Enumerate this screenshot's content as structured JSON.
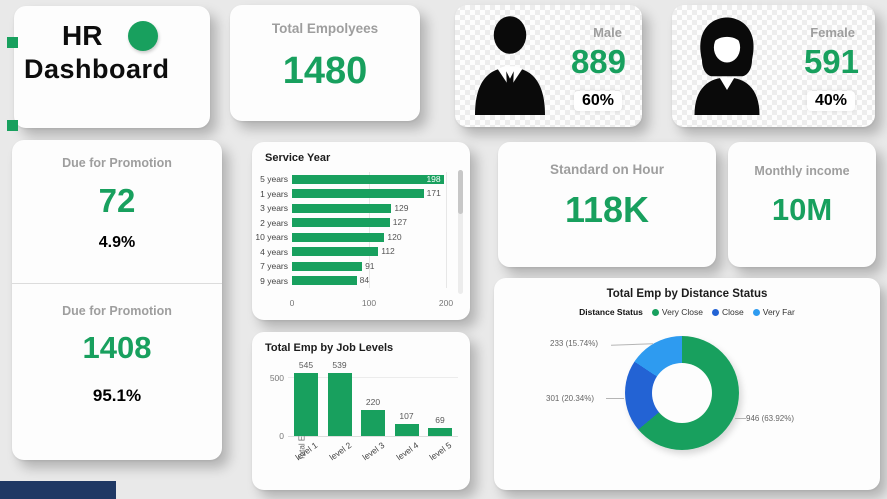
{
  "theme": {
    "green": "#18A05E",
    "page_bg": "#E9E9E9",
    "navy": "#1F3864"
  },
  "title_card": {
    "line1": "HR",
    "line2": "Dashboard"
  },
  "total_employees": {
    "label": "Total Empolyees",
    "value": "1480"
  },
  "male": {
    "label": "Male",
    "value": "889",
    "percent": "60%"
  },
  "female": {
    "label": "Female",
    "value": "591",
    "percent": "40%"
  },
  "promotion": {
    "top": {
      "label": "Due for Promotion",
      "value": "72",
      "percent": "4.9%"
    },
    "bottom": {
      "label": "Due for Promotion",
      "value": "1408",
      "percent": "95.1%"
    }
  },
  "standard_on_hour": {
    "label": "Standard on Hour",
    "value": "118K"
  },
  "monthly_income": {
    "label": "Monthly income",
    "value": "10M"
  },
  "chart_data": [
    {
      "type": "bar",
      "orientation": "horizontal",
      "title": "Service Year",
      "categories": [
        "5 years",
        "1 years",
        "3 years",
        "2 years",
        "10 years",
        "4 years",
        "7 years",
        "9 years"
      ],
      "values": [
        198,
        171,
        129,
        127,
        120,
        112,
        91,
        84
      ],
      "xlim": [
        0,
        200
      ],
      "xticks": [
        "0",
        "100",
        "200"
      ],
      "bar_color": "#18A05E"
    },
    {
      "type": "bar",
      "orientation": "vertical",
      "title": "Total Emp by Job Levels",
      "categories": [
        "level 1",
        "level 2",
        "level 3",
        "level 4",
        "level 5"
      ],
      "values": [
        545,
        539,
        220,
        107,
        69
      ],
      "ylabel": "Total Emp",
      "yticks": [
        "0",
        "500"
      ],
      "ylim": [
        0,
        560
      ],
      "bar_color": "#18A05E"
    },
    {
      "type": "pie",
      "title": "Total Emp by Distance Status",
      "legend_title": "Distance Status",
      "legend_position": "top",
      "segments": [
        {
          "name": "Very Close",
          "value": 946,
          "percent": "63.92%",
          "callout": "946 (63.92%)",
          "color": "#18A05E"
        },
        {
          "name": "Close",
          "value": 301,
          "percent": "20.34%",
          "callout": "301 (20.34%)",
          "color": "#2363D4"
        },
        {
          "name": "Very Far",
          "value": 233,
          "percent": "15.74%",
          "callout": "233 (15.74%)",
          "color": "#2E9BF0"
        }
      ]
    }
  ]
}
